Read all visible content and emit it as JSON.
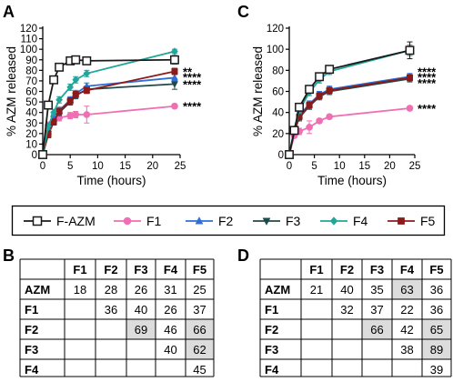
{
  "panel_labels": {
    "a": "A",
    "b": "B",
    "c": "C",
    "d": "D"
  },
  "series_styles": [
    {
      "key": "FAZM",
      "color": "#1a1a1a",
      "marker": "square-open"
    },
    {
      "key": "F1",
      "color": "#f06eb4",
      "marker": "circle"
    },
    {
      "key": "F2",
      "color": "#2e6fd8",
      "marker": "triangle-up"
    },
    {
      "key": "F3",
      "color": "#1f4a4a",
      "marker": "triangle-down"
    },
    {
      "key": "F4",
      "color": "#22a59a",
      "marker": "diamond"
    },
    {
      "key": "F5",
      "color": "#8b1a1a",
      "marker": "square"
    }
  ],
  "legend": [
    {
      "key": "FAZM",
      "label": "F-AZM"
    },
    {
      "key": "F1",
      "label": "F1"
    },
    {
      "key": "F2",
      "label": "F2"
    },
    {
      "key": "F3",
      "label": "F3"
    },
    {
      "key": "F4",
      "label": "F4"
    },
    {
      "key": "F5",
      "label": "F5"
    }
  ],
  "chart_data": [
    {
      "panel": "A",
      "type": "line",
      "xlabel": "Time  (hours)",
      "ylabel": "% AZM released",
      "xlim": [
        0,
        25
      ],
      "ylim": [
        0,
        120
      ],
      "xticks": [
        0,
        5,
        10,
        15,
        20,
        25
      ],
      "yticks": [
        0,
        10,
        20,
        30,
        40,
        50,
        60,
        70,
        80,
        90,
        100,
        110,
        120
      ],
      "series": [
        {
          "key": "FAZM",
          "x": [
            0,
            1,
            2,
            3,
            5,
            6,
            8,
            24
          ],
          "y": [
            0,
            47,
            71,
            83,
            89,
            90,
            89,
            90
          ],
          "err": [
            0,
            3,
            3,
            3,
            2,
            2,
            2,
            4
          ]
        },
        {
          "key": "F1",
          "x": [
            0,
            1,
            2,
            3,
            5,
            6,
            8,
            24
          ],
          "y": [
            0,
            28,
            32,
            35,
            37,
            38,
            38,
            46
          ],
          "err": [
            0,
            3,
            3,
            3,
            3,
            3,
            8,
            2
          ]
        },
        {
          "key": "F2",
          "x": [
            0,
            1,
            2,
            3,
            5,
            6,
            8,
            24
          ],
          "y": [
            0,
            22,
            35,
            42,
            52,
            58,
            65,
            73
          ],
          "err": [
            0,
            3,
            3,
            3,
            3,
            3,
            3,
            3
          ]
        },
        {
          "key": "F3",
          "x": [
            0,
            1,
            2,
            3,
            5,
            6,
            8,
            24
          ],
          "y": [
            0,
            20,
            34,
            40,
            50,
            56,
            62,
            67
          ],
          "err": [
            0,
            3,
            3,
            3,
            3,
            3,
            3,
            5
          ]
        },
        {
          "key": "F4",
          "x": [
            0,
            1,
            2,
            3,
            5,
            6,
            8,
            24
          ],
          "y": [
            0,
            27,
            40,
            52,
            64,
            71,
            77,
            98
          ],
          "err": [
            0,
            3,
            3,
            3,
            3,
            3,
            3,
            2
          ]
        },
        {
          "key": "F5",
          "x": [
            0,
            1,
            2,
            3,
            5,
            6,
            8,
            24
          ],
          "y": [
            0,
            19,
            31,
            41,
            51,
            57,
            61,
            79
          ],
          "err": [
            0,
            3,
            3,
            3,
            3,
            3,
            3,
            3
          ]
        }
      ],
      "annotations": [
        {
          "y": 79,
          "text": "**"
        },
        {
          "y": 74,
          "text": "****"
        },
        {
          "y": 67,
          "text": "****"
        },
        {
          "y": 46,
          "text": "****"
        }
      ]
    },
    {
      "panel": "C",
      "type": "line",
      "xlabel": "Time  (hours)",
      "ylabel": "% AZM released",
      "xlim": [
        0,
        25
      ],
      "ylim": [
        0,
        120
      ],
      "xticks": [
        0,
        5,
        10,
        15,
        20,
        25
      ],
      "yticks": [
        0,
        20,
        40,
        60,
        80,
        100,
        120
      ],
      "series": [
        {
          "key": "FAZM",
          "x": [
            0,
            1,
            2,
            4,
            6,
            8,
            24
          ],
          "y": [
            0,
            23,
            45,
            62,
            74,
            81,
            99
          ],
          "err": [
            0,
            2,
            3,
            3,
            3,
            3,
            8
          ]
        },
        {
          "key": "F1",
          "x": [
            0,
            1,
            2,
            4,
            6,
            8,
            24
          ],
          "y": [
            0,
            18,
            22,
            26,
            32,
            36,
            44
          ],
          "err": [
            0,
            2,
            3,
            6,
            2,
            2,
            2
          ]
        },
        {
          "key": "F2",
          "x": [
            0,
            1,
            2,
            4,
            6,
            8,
            24
          ],
          "y": [
            0,
            23,
            37,
            48,
            57,
            62,
            74
          ],
          "err": [
            0,
            2,
            3,
            3,
            3,
            3,
            3
          ]
        },
        {
          "key": "F3",
          "x": [
            0,
            1,
            2,
            4,
            6,
            8,
            24
          ],
          "y": [
            0,
            22,
            35,
            46,
            55,
            60,
            72
          ],
          "err": [
            0,
            2,
            3,
            3,
            3,
            3,
            3
          ]
        },
        {
          "key": "F4",
          "x": [
            0,
            1,
            2,
            4,
            6,
            8,
            24
          ],
          "y": [
            0,
            24,
            42,
            59,
            71,
            79,
            99
          ],
          "err": [
            0,
            2,
            3,
            3,
            3,
            3,
            5
          ]
        },
        {
          "key": "F5",
          "x": [
            0,
            1,
            2,
            4,
            6,
            8,
            24
          ],
          "y": [
            0,
            22,
            36,
            47,
            56,
            61,
            73
          ],
          "err": [
            0,
            2,
            3,
            3,
            3,
            3,
            3
          ]
        }
      ],
      "annotations": [
        {
          "y": 79,
          "text": "****"
        },
        {
          "y": 74,
          "text": "****"
        },
        {
          "y": 68,
          "text": "****"
        },
        {
          "y": 44,
          "text": "****"
        }
      ]
    },
    {
      "panel": "B",
      "type": "table",
      "columns": [
        "F1",
        "F2",
        "F3",
        "F4",
        "F5"
      ],
      "rows": [
        {
          "label": "AZM",
          "cells": [
            "18",
            "28",
            "26",
            "31",
            "25"
          ]
        },
        {
          "label": "F1",
          "cells": [
            "",
            "36",
            "40",
            "26",
            "37"
          ]
        },
        {
          "label": "F2",
          "cells": [
            "",
            "",
            "69",
            "46",
            "66"
          ]
        },
        {
          "label": "F3",
          "cells": [
            "",
            "",
            "",
            "40",
            "62"
          ]
        },
        {
          "label": "F4",
          "cells": [
            "",
            "",
            "",
            "",
            "45"
          ]
        }
      ],
      "highlighted": [
        [
          2,
          2
        ],
        [
          2,
          4
        ],
        [
          3,
          4
        ]
      ]
    },
    {
      "panel": "D",
      "type": "table",
      "columns": [
        "F1",
        "F2",
        "F3",
        "F4",
        "F5"
      ],
      "rows": [
        {
          "label": "AZM",
          "cells": [
            "21",
            "40",
            "35",
            "63",
            "36"
          ]
        },
        {
          "label": "F1",
          "cells": [
            "",
            "32",
            "37",
            "22",
            "36"
          ]
        },
        {
          "label": "F2",
          "cells": [
            "",
            "",
            "66",
            "42",
            "65"
          ]
        },
        {
          "label": "F3",
          "cells": [
            "",
            "",
            "",
            "38",
            "89"
          ]
        },
        {
          "label": "F4",
          "cells": [
            "",
            "",
            "",
            "",
            "39"
          ]
        }
      ],
      "highlighted": [
        [
          0,
          3
        ],
        [
          2,
          2
        ],
        [
          2,
          4
        ],
        [
          3,
          4
        ]
      ]
    }
  ]
}
